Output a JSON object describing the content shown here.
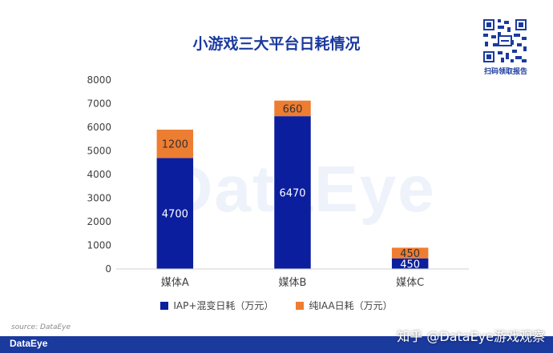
{
  "chart_data": {
    "type": "bar",
    "stacked": true,
    "title": "小游戏三大平台日耗情况",
    "categories": [
      "媒体A",
      "媒体B",
      "媒体C"
    ],
    "series": [
      {
        "name": "IAP+混变日耗（万元）",
        "values": [
          4700,
          6470,
          450
        ],
        "color": "#0b1e9e"
      },
      {
        "name": "纯IAA日耗（万元）",
        "values": [
          1200,
          660,
          450
        ],
        "color": "#ed7d31"
      }
    ],
    "yticks": [
      "0",
      "1000",
      "2000",
      "3000",
      "4000",
      "5000",
      "6000",
      "7000",
      "8000"
    ],
    "ylim": [
      0,
      8000
    ],
    "grid": false,
    "legend_position": "bottom"
  },
  "watermark": "DataEye",
  "qr_caption": "扫码领取报告",
  "source": "source: DataEye",
  "footer": {
    "logo": "DataEye",
    "credit": "知乎 @DataEye游戏观察"
  }
}
